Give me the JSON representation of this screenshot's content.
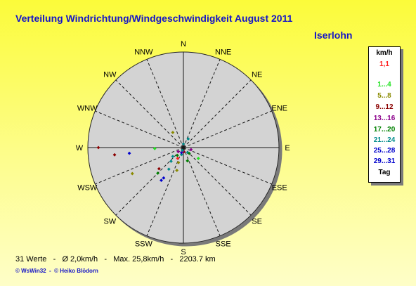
{
  "title": "Verteilung Windrichtung/Windgeschwindigkeit  August 2011",
  "station": "Iserlohn",
  "legend": {
    "header": "km/h",
    "items": [
      {
        "label": "1,1",
        "color": "#ff2020"
      },
      {
        "label": "1...4",
        "color": "#22e222"
      },
      {
        "label": "5...8",
        "color": "#8a8a00"
      },
      {
        "label": "9...12",
        "color": "#8b0000"
      },
      {
        "label": "13...16",
        "color": "#8b008b"
      },
      {
        "label": "17...20",
        "color": "#008000"
      },
      {
        "label": "21...24",
        "color": "#008b8b"
      },
      {
        "label": "25...28",
        "color": "#0000cd"
      },
      {
        "label": "29...31",
        "color": "#0000cd"
      }
    ],
    "footer": "Tag"
  },
  "footer": {
    "count": "31 Werte",
    "avg": "Ø 2,0km/h",
    "max": "Max. 25,8km/h",
    "dist": "2203.7 km"
  },
  "copyright": "© WsWin32  -  © Heiko Blödorn",
  "chart_data": {
    "type": "scatter",
    "directions": [
      "N",
      "NNE",
      "NE",
      "ENE",
      "E",
      "ESE",
      "SE",
      "SSE",
      "S",
      "SSW",
      "SW",
      "WSW",
      "W",
      "WNW",
      "NW",
      "NNW"
    ],
    "points": [
      {
        "dir_deg": 270,
        "speed": 25.8,
        "color": "#8b0000"
      },
      {
        "dir_deg": 264,
        "speed": 21.0,
        "color": "#8b0000"
      },
      {
        "dir_deg": 264,
        "speed": 16.5,
        "color": "#0000cd"
      },
      {
        "dir_deg": 268,
        "speed": 8.7,
        "color": "#22e222"
      },
      {
        "dir_deg": 243,
        "speed": 17.4,
        "color": "#8a8a00"
      },
      {
        "dir_deg": 229,
        "speed": 9.8,
        "color": "#8b0000"
      },
      {
        "dir_deg": 225,
        "speed": 11.0,
        "color": "#008000"
      },
      {
        "dir_deg": 214,
        "speed": 12.0,
        "color": "#0000cd"
      },
      {
        "dir_deg": 213,
        "speed": 11.0,
        "color": "#0000cd"
      },
      {
        "dir_deg": 214,
        "speed": 7.9,
        "color": "#008b8b"
      },
      {
        "dir_deg": 230,
        "speed": 4.2,
        "color": "#008b8b"
      },
      {
        "dir_deg": 222,
        "speed": 5.6,
        "color": "#008b8b"
      },
      {
        "dir_deg": 208,
        "speed": 3.7,
        "color": "#ff2020"
      },
      {
        "dir_deg": 218,
        "speed": 3.0,
        "color": "#008000"
      },
      {
        "dir_deg": 196,
        "speed": 7.2,
        "color": "#8a8a00"
      },
      {
        "dir_deg": 198,
        "speed": 4.8,
        "color": "#8a8a00"
      },
      {
        "dir_deg": 195,
        "speed": 2.2,
        "color": "#008b8b"
      },
      {
        "dir_deg": 163,
        "speed": 4.2,
        "color": "#008000"
      },
      {
        "dir_deg": 139,
        "speed": 2.0,
        "color": "#008b8b"
      },
      {
        "dir_deg": 126,
        "speed": 5.6,
        "color": "#22e222"
      },
      {
        "dir_deg": 232,
        "speed": 2.0,
        "color": "#8b008b"
      },
      {
        "dir_deg": 200,
        "speed": 1.6,
        "color": "#0000cd"
      },
      {
        "dir_deg": 173,
        "speed": 1.3,
        "color": "#8b0000"
      },
      {
        "dir_deg": 190,
        "speed": 1.2,
        "color": "#8b008b"
      },
      {
        "dir_deg": 105,
        "speed": 2.4,
        "color": "#8b008b"
      },
      {
        "dir_deg": 325,
        "speed": 5.6,
        "color": "#8a8a00"
      },
      {
        "dir_deg": 29,
        "speed": 3.0,
        "color": "#008b8b"
      },
      {
        "dir_deg": 0,
        "speed": 1.1,
        "color": "#ff2020"
      },
      {
        "dir_deg": 0,
        "speed": 1.1,
        "color": "#008b8b"
      },
      {
        "dir_deg": 135,
        "speed": 2.5,
        "color": "#008000"
      },
      {
        "dir_deg": 200,
        "speed": 0.9,
        "color": "#008b8b"
      }
    ],
    "speed_max": 29
  }
}
